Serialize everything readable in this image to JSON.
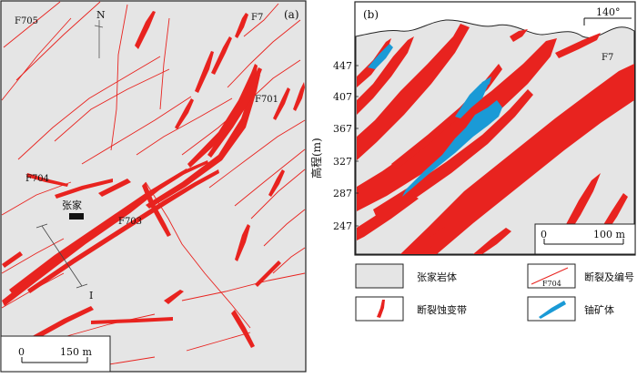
{
  "panel_a": {
    "label": "(a)",
    "north": "N",
    "place": "张家",
    "section": "I",
    "scale": {
      "zero": "0",
      "length": "150 m"
    },
    "faults": {
      "f705": "F705",
      "f7": "F7",
      "f701": "F701",
      "f704": "F704",
      "f703": "F703"
    }
  },
  "panel_b": {
    "label": "(b)",
    "azimuth": "140°",
    "fault": "F7",
    "ylabel": "高程(m)",
    "yticks": [
      "447",
      "407",
      "367",
      "327",
      "287",
      "247"
    ],
    "scale": {
      "zero": "0",
      "length": "100 m"
    }
  },
  "legend": {
    "rock": "张家岩体",
    "fault": "断裂及编号",
    "fault_symbol": "F704",
    "alteration": "断裂蚀变带",
    "ore": "铀矿体"
  },
  "colors": {
    "background": "#e5e5e5",
    "fault_red": "#e8231f",
    "ore_blue": "#1a9ad6"
  }
}
